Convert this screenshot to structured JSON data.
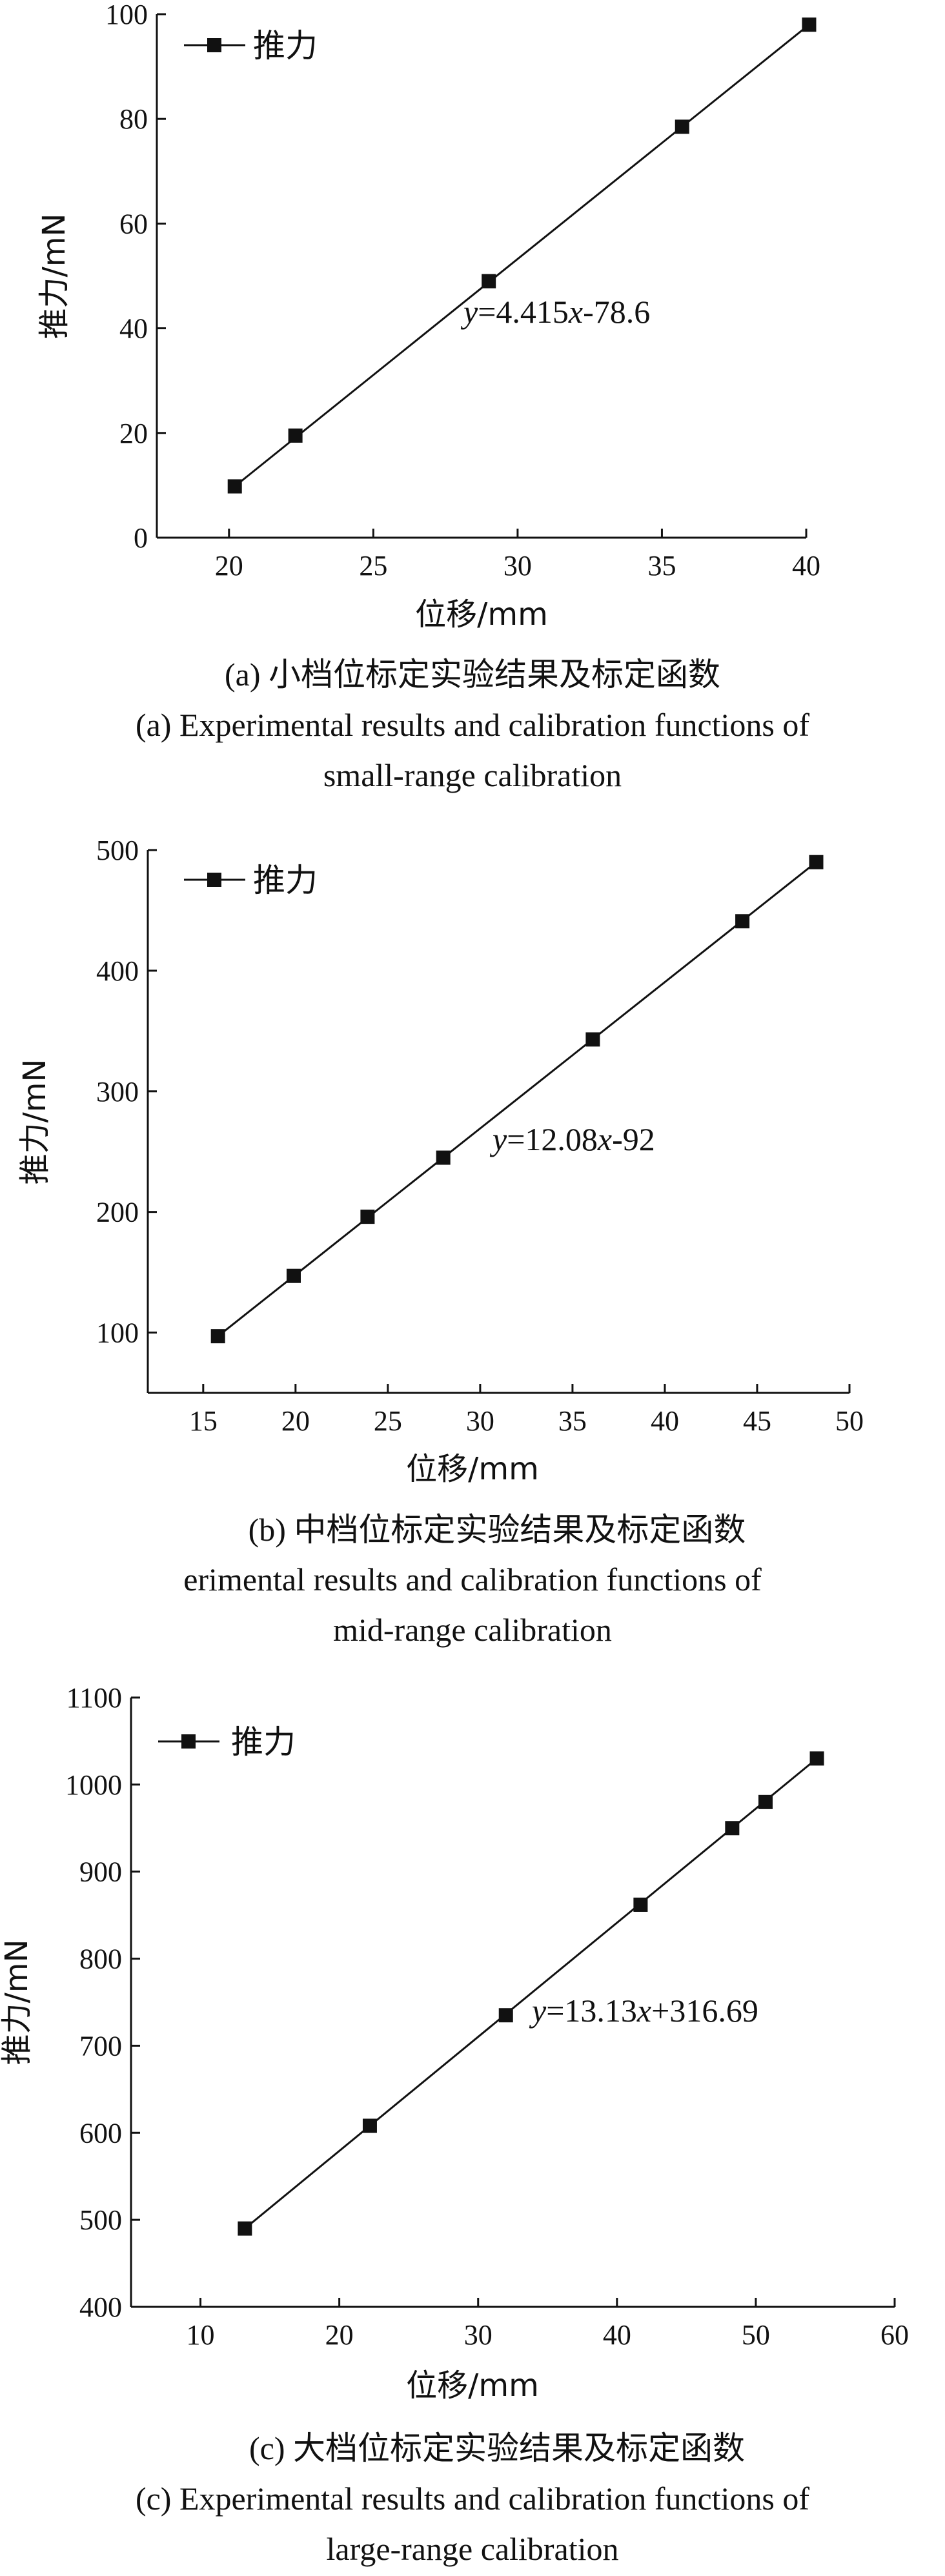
{
  "chart_data": [
    {
      "type": "line",
      "legend": "推力",
      "legend_position": "top-left",
      "xlabel": "位移/mm",
      "ylabel": "推力/mN",
      "xlim": [
        17.5,
        40
      ],
      "ylim": [
        0,
        100
      ],
      "xticks": [
        20,
        25,
        30,
        35,
        40
      ],
      "yticks": [
        0,
        20,
        40,
        60,
        80,
        100
      ],
      "points": [
        {
          "x": 20.2,
          "y": 9.8
        },
        {
          "x": 22.3,
          "y": 19.5
        },
        {
          "x": 29.0,
          "y": 49.0
        },
        {
          "x": 35.7,
          "y": 78.5
        },
        {
          "x": 40.1,
          "y": 98.0
        }
      ],
      "equation": "y=4.415x-78.6",
      "caption_zh": "(a) 小档位标定实验结果及标定函数",
      "caption_en_line1": "(a) Experimental results and calibration functions of",
      "caption_en_line2": "small-range calibration",
      "grid": false
    },
    {
      "type": "line",
      "legend": "推力",
      "legend_position": "top-left",
      "xlabel": "位移/mm",
      "ylabel": "推力/mN",
      "xlim": [
        12,
        50
      ],
      "ylim": [
        50,
        500
      ],
      "xticks": [
        15,
        20,
        25,
        30,
        35,
        40,
        45,
        50
      ],
      "yticks": [
        100,
        200,
        300,
        400,
        500
      ],
      "points": [
        {
          "x": 15.8,
          "y": 97
        },
        {
          "x": 19.9,
          "y": 147
        },
        {
          "x": 23.9,
          "y": 196
        },
        {
          "x": 28.0,
          "y": 245
        },
        {
          "x": 36.1,
          "y": 343
        },
        {
          "x": 44.2,
          "y": 441
        },
        {
          "x": 48.2,
          "y": 490
        }
      ],
      "equation": "y=12.08x-92",
      "caption_zh": "(b) 中档位标定实验结果及标定函数",
      "caption_en_line1": "erimental results and calibration functions of",
      "caption_en_line2": "mid-range calibration",
      "grid": false
    },
    {
      "type": "line",
      "legend": "推力",
      "legend_position": "top-left",
      "xlabel": "位移/mm",
      "ylabel": "推力/mN",
      "xlim": [
        5,
        60
      ],
      "ylim": [
        400,
        1100
      ],
      "xticks": [
        10,
        20,
        30,
        40,
        50,
        60
      ],
      "yticks": [
        400,
        500,
        600,
        700,
        800,
        900,
        1000,
        1100
      ],
      "points": [
        {
          "x": 13.2,
          "y": 490
        },
        {
          "x": 22.2,
          "y": 608
        },
        {
          "x": 32.0,
          "y": 735
        },
        {
          "x": 41.7,
          "y": 862
        },
        {
          "x": 48.3,
          "y": 950
        },
        {
          "x": 50.7,
          "y": 980
        },
        {
          "x": 54.4,
          "y": 1030
        }
      ],
      "equation": "y=13.13x+316.69",
      "caption_zh": "(c) 大档位标定实验结果及标定函数",
      "caption_en_line1": "(c) Experimental results and calibration functions of",
      "caption_en_line2": "large-range calibration",
      "grid": false
    }
  ]
}
